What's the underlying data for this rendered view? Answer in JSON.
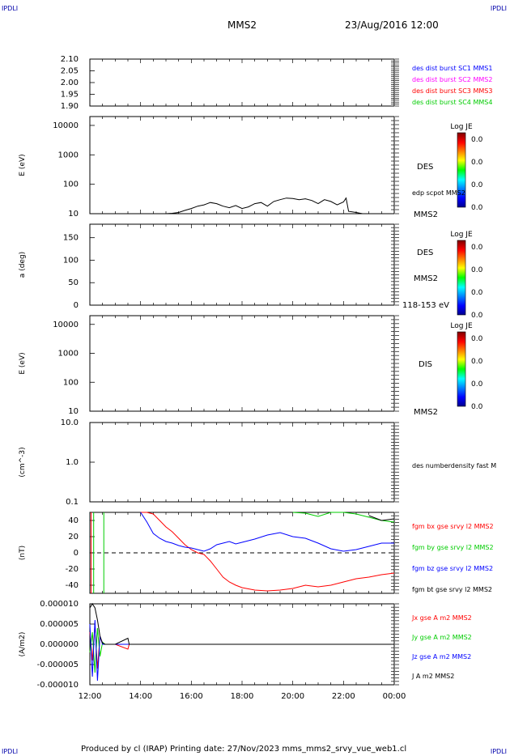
{
  "header": {
    "corner_tl": "IPDLI",
    "corner_tr": "IPDLI",
    "corner_bl": "IPDLI",
    "corner_br": "IPDLI",
    "spacecraft": "MMS2",
    "datetime": "23/Aug/2016 12:00"
  },
  "footer": {
    "text": "Produced by cl (IRAP)   Printing date: 27/Nov/2023   mms_mms2_srvy_vue_web1.cl"
  },
  "time_axis": {
    "ticks": [
      "12:00",
      "14:00",
      "16:00",
      "18:00",
      "20:00",
      "22:00",
      "00:00"
    ]
  },
  "chart_data": [
    {
      "type": "line",
      "panel": "des-dist-burst",
      "ylim": [
        1.9,
        2.1
      ],
      "yticks": [
        "2.10",
        "2.05",
        "2.00",
        "1.95",
        "1.90"
      ],
      "legend": [
        {
          "label": "des dist burst SC1 MMS1",
          "color": "#0000ff"
        },
        {
          "label": "des dist burst SC2 MMS2",
          "color": "#ff00ff"
        },
        {
          "label": "des dist burst SC3 MMS3",
          "color": "#ff0000"
        },
        {
          "label": "des dist burst SC4 MMS4",
          "color": "#00cc00"
        }
      ],
      "series": []
    },
    {
      "type": "heatmap",
      "panel": "des-energy",
      "ylabel": "E (eV)",
      "yscale": "log",
      "ylim": [
        10,
        20000
      ],
      "yticks": [
        "10000",
        "1000",
        "100",
        "10"
      ],
      "labels": [
        "DES",
        "MMS2"
      ],
      "overlay_label": "edp scpot MMS2",
      "colorbar": {
        "title": "Log JE",
        "ticks": [
          "0.0",
          "0.0",
          "0.0",
          "0.0"
        ]
      },
      "overlay": {
        "name": "edp scpot MMS2",
        "color": "#000000",
        "x_hours": [
          12.0,
          12.5,
          13.0,
          13.5,
          14.0,
          14.5,
          15.0,
          15.25,
          15.5,
          15.75,
          16.0,
          16.25,
          16.5,
          16.75,
          17.0,
          17.25,
          17.5,
          17.75,
          18.0,
          18.25,
          18.5,
          18.75,
          19.0,
          19.25,
          19.5,
          19.75,
          20.0,
          20.25,
          20.5,
          20.75,
          21.0,
          21.25,
          21.5,
          21.75,
          22.0,
          22.1,
          22.2,
          22.5,
          22.75
        ],
        "y": [
          10,
          10,
          10,
          10,
          10,
          10,
          10,
          10.3,
          11,
          13,
          15,
          18,
          20,
          24,
          22,
          18,
          16,
          19,
          15,
          17,
          22,
          24,
          18,
          26,
          30,
          34,
          33,
          30,
          32,
          28,
          22,
          30,
          26,
          20,
          25,
          34,
          12,
          11,
          10
        ]
      }
    },
    {
      "type": "heatmap",
      "panel": "des-pitch",
      "ylabel": "a (deg)",
      "ylim": [
        0,
        180
      ],
      "yticks": [
        "150",
        "100",
        "50",
        "0"
      ],
      "labels": [
        "DES",
        "MMS2",
        "118-153 eV"
      ],
      "colorbar": {
        "title": "Log JE",
        "ticks": [
          "0.0",
          "0.0",
          "0.0",
          "0.0"
        ]
      }
    },
    {
      "type": "heatmap",
      "panel": "dis-energy",
      "ylabel": "E (eV)",
      "yscale": "log",
      "ylim": [
        10,
        20000
      ],
      "yticks": [
        "10000",
        "1000",
        "100",
        "10"
      ],
      "labels": [
        "DIS",
        "MMS2"
      ],
      "colorbar": {
        "title": "Log JE",
        "ticks": [
          "0.0",
          "0.0",
          "0.0",
          "0.0"
        ]
      }
    },
    {
      "type": "line",
      "panel": "density",
      "ylabel": "(cm^-3)",
      "yscale": "log",
      "ylim": [
        0.1,
        10
      ],
      "yticks": [
        "10.0",
        "1.0",
        "0.1"
      ],
      "legend": [
        {
          "label": "des numberdensity fast M",
          "color": "#000000"
        }
      ],
      "series": []
    },
    {
      "type": "line",
      "panel": "magnetic-field",
      "ylabel": "(nT)",
      "ylim": [
        -50,
        50
      ],
      "yticks": [
        "40",
        "20",
        "0",
        "-20",
        "-40"
      ],
      "x_hours": [
        12.0,
        12.5,
        13.0,
        13.5,
        14.0,
        14.25,
        14.5,
        14.75,
        15.0,
        15.25,
        15.5,
        15.75,
        16.0,
        16.25,
        16.5,
        16.75,
        17.0,
        17.25,
        17.5,
        17.75,
        18.0,
        18.5,
        19.0,
        19.5,
        20.0,
        20.5,
        21.0,
        21.5,
        22.0,
        22.5,
        23.0,
        23.5,
        24.0
      ],
      "series": [
        {
          "name": "fgm bx gse srvy l2 MMS2",
          "color": "#ff0000",
          "y": [
            null,
            null,
            null,
            null,
            55,
            52,
            48,
            40,
            32,
            26,
            18,
            10,
            4,
            0,
            -2,
            -10,
            -20,
            -30,
            -36,
            -40,
            -43,
            -46,
            -47,
            -46,
            -44,
            -40,
            -42,
            -40,
            -36,
            -32,
            -30,
            -27,
            -25
          ]
        },
        {
          "name": "fgm by gse srvy l2 MMS2",
          "color": "#00cc00",
          "y": [
            null,
            null,
            null,
            null,
            null,
            null,
            null,
            null,
            null,
            null,
            null,
            null,
            null,
            null,
            null,
            null,
            null,
            null,
            null,
            null,
            null,
            null,
            null,
            null,
            58,
            49,
            45,
            50,
            52,
            48,
            44,
            40,
            38
          ]
        },
        {
          "name": "fgm bz gse srvy l2 MMS2",
          "color": "#0000ff",
          "y": [
            null,
            null,
            null,
            null,
            50,
            38,
            24,
            18,
            14,
            12,
            9,
            7,
            6,
            4,
            2,
            5,
            10,
            12,
            14,
            11,
            13,
            17,
            22,
            25,
            20,
            18,
            12,
            5,
            2,
            4,
            8,
            12,
            12
          ]
        },
        {
          "name": "fgm bt gse srvy l2 MMS2",
          "color": "#000000",
          "y": [
            null,
            null,
            null,
            null,
            null,
            null,
            null,
            null,
            null,
            null,
            null,
            null,
            null,
            null,
            null,
            null,
            null,
            null,
            null,
            null,
            null,
            null,
            null,
            null,
            null,
            null,
            null,
            null,
            null,
            null,
            46,
            40,
            42
          ]
        }
      ]
    },
    {
      "type": "line",
      "panel": "current-density",
      "ylabel": "(A/m2)",
      "ylim": [
        -1e-05,
        1e-05
      ],
      "yticks": [
        "0.000010",
        "0.000005",
        "0.000000",
        "-0.000005",
        "-0.000010"
      ],
      "x_hours": [
        12.0,
        12.1,
        12.2,
        12.3,
        12.4,
        12.5,
        12.6,
        13.0,
        13.5,
        13.55,
        14.0,
        16.0,
        18.0,
        20.0,
        22.0,
        24.0
      ],
      "series": [
        {
          "name": "Jx gse A m2 MMS2",
          "color": "#ff0000",
          "y": [
            3e-06,
            -4e-06,
            5e-06,
            -6e-06,
            2e-06,
            0.0,
            0.0,
            0.0,
            -1.2e-06,
            0.0,
            0.0,
            0.0,
            0.0,
            0.0,
            0.0,
            0.0
          ]
        },
        {
          "name": "Jy gse A m2 MMS2",
          "color": "#00cc00",
          "y": [
            -2e-06,
            3e-06,
            -7e-06,
            4e-06,
            -3e-06,
            5e-07,
            0.0,
            0.0,
            0.0,
            0.0,
            0.0,
            0.0,
            0.0,
            0.0,
            0.0,
            0.0
          ]
        },
        {
          "name": "Jz gse A m2 MMS2",
          "color": "#0000ff",
          "y": [
            5e-06,
            -8e-06,
            6e-06,
            -9e-06,
            2e-06,
            0.0,
            0.0,
            0.0,
            0.0,
            0.0,
            0.0,
            0.0,
            0.0,
            0.0,
            0.0,
            0.0
          ]
        },
        {
          "name": "J A m2 MMS2",
          "color": "#000000",
          "y": [
            9e-06,
            1e-05,
            9e-06,
            6e-06,
            2e-06,
            3e-07,
            0.0,
            0.0,
            1.5e-06,
            0.0,
            0.0,
            0.0,
            0.0,
            0.0,
            0.0,
            0.0
          ]
        }
      ]
    }
  ]
}
